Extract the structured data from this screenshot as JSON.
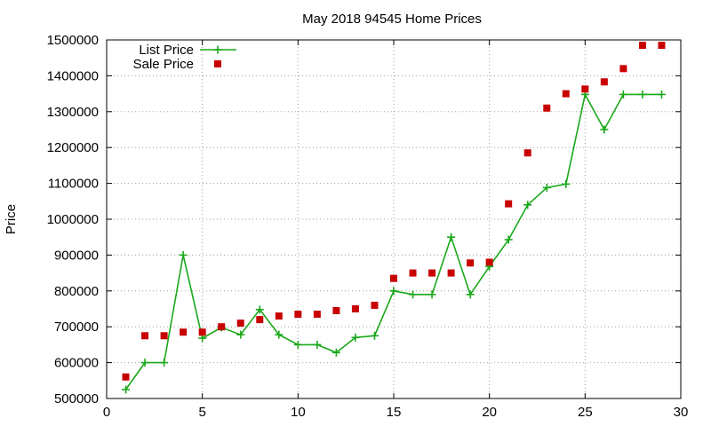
{
  "chart_data": {
    "type": "line",
    "title": "May 2018 94545 Home Prices",
    "xlabel": "",
    "ylabel": "Price",
    "xlim": [
      0,
      30
    ],
    "ylim": [
      500000,
      1500000
    ],
    "xticks": [
      0,
      5,
      10,
      15,
      20,
      25,
      30
    ],
    "yticks": [
      500000,
      600000,
      700000,
      800000,
      900000,
      1000000,
      1100000,
      1200000,
      1300000,
      1400000,
      1500000
    ],
    "grid": true,
    "legend_position": "top-left",
    "series": [
      {
        "name": "List Price",
        "style": "line+crosshair",
        "color": "#1aa81a",
        "x": [
          1,
          2,
          3,
          4,
          5,
          6,
          7,
          8,
          9,
          10,
          11,
          12,
          13,
          14,
          15,
          16,
          17,
          18,
          19,
          20,
          21,
          22,
          23,
          24,
          25,
          26,
          27,
          28,
          29
        ],
        "y": [
          525000,
          600000,
          600000,
          900000,
          668000,
          698000,
          678000,
          748000,
          678000,
          650000,
          650000,
          628000,
          670000,
          675000,
          800000,
          790000,
          790000,
          950000,
          790000,
          868000,
          943000,
          1040000,
          1088000,
          1098000,
          1348000,
          1250000,
          1348000,
          1348000,
          1348000
        ]
      },
      {
        "name": "Sale Price",
        "style": "square-markers",
        "color": "#c80000",
        "x": [
          1,
          2,
          3,
          4,
          5,
          6,
          7,
          8,
          9,
          10,
          11,
          12,
          13,
          14,
          15,
          16,
          17,
          18,
          19,
          20,
          21,
          22,
          23,
          24,
          25,
          26,
          27,
          28,
          29
        ],
        "y": [
          560000,
          675000,
          675000,
          685000,
          685000,
          700000,
          710000,
          720000,
          730000,
          735000,
          735000,
          745000,
          750000,
          760000,
          835000,
          850000,
          850000,
          850000,
          878000,
          880000,
          1043000,
          1185000,
          1310000,
          1350000,
          1363000,
          1383000,
          1420000,
          1485000,
          1485000
        ]
      }
    ]
  }
}
